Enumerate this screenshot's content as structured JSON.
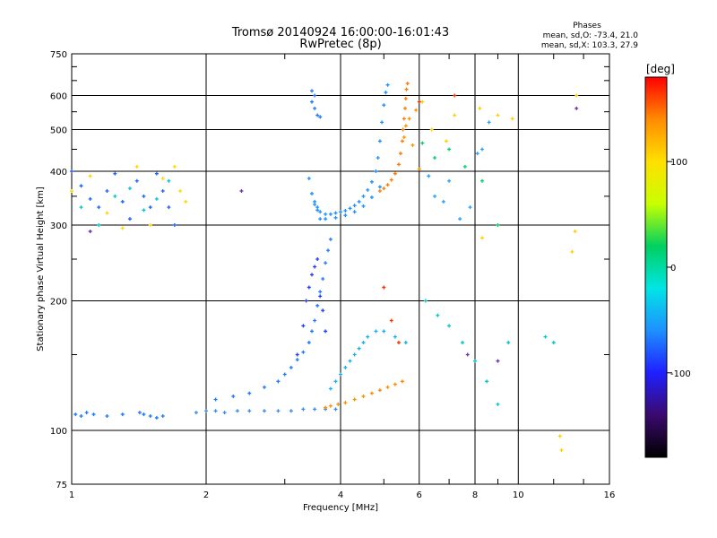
{
  "chart_data": {
    "type": "scatter",
    "title": "Tromsø 20140924 16:00:00-16:01:43",
    "subtitle": "RwPretec (8p)",
    "xlabel": "Frequency [MHz]",
    "ylabel": "Stationary phase Virtual Height [km]",
    "x_scale": "log",
    "y_scale": "log",
    "xlim": [
      1,
      16
    ],
    "ylim": [
      75,
      750
    ],
    "x_ticks": [
      1,
      2,
      4,
      6,
      8,
      10,
      16
    ],
    "x_minor_ticks": [
      3,
      5,
      7,
      9,
      12,
      14
    ],
    "y_ticks": [
      75,
      100,
      200,
      300,
      400,
      500,
      600,
      750
    ],
    "y_minor_ticks": [
      150,
      250,
      350,
      450,
      550,
      650,
      700
    ],
    "grid": true,
    "phase_box": {
      "title": "Phases",
      "line_o": "mean, sd,O: -73.4, 21.0",
      "line_x": "mean, sd,X: 103.3, 27.9"
    },
    "colorbar": {
      "label": "[deg]",
      "range": [
        -180,
        180
      ],
      "ticks": [
        100,
        0,
        -100
      ],
      "colormap": [
        "#000000",
        "#3b0a6e",
        "#1f1fff",
        "#1e90ff",
        "#00e5e5",
        "#00d060",
        "#c8ff00",
        "#ffe000",
        "#ff8c00",
        "#ff0000"
      ]
    },
    "series": [
      {
        "color": "#1e78ff",
        "points": [
          [
            1.02,
            109
          ],
          [
            1.05,
            108
          ],
          [
            1.08,
            110
          ],
          [
            1.12,
            109
          ],
          [
            1.2,
            108
          ],
          [
            1.3,
            109
          ],
          [
            1.42,
            110
          ],
          [
            1.45,
            109
          ],
          [
            1.5,
            108
          ],
          [
            1.55,
            107
          ],
          [
            1.6,
            108
          ]
        ]
      },
      {
        "color": "#3a8ae6",
        "points": [
          [
            1.9,
            110
          ],
          [
            2.0,
            111
          ],
          [
            2.1,
            111
          ],
          [
            2.2,
            110
          ],
          [
            2.35,
            111
          ],
          [
            2.5,
            111
          ],
          [
            2.7,
            111
          ],
          [
            2.9,
            111
          ],
          [
            3.1,
            111
          ],
          [
            3.3,
            112
          ],
          [
            3.5,
            112
          ],
          [
            3.7,
            112
          ],
          [
            3.9,
            112
          ]
        ]
      },
      {
        "color": "#1e78ff",
        "points": [
          [
            2.1,
            118
          ],
          [
            2.3,
            120
          ],
          [
            2.5,
            122
          ],
          [
            2.7,
            126
          ],
          [
            2.9,
            130
          ],
          [
            3.0,
            135
          ],
          [
            3.1,
            140
          ],
          [
            3.2,
            146
          ],
          [
            3.3,
            152
          ],
          [
            3.4,
            160
          ],
          [
            3.45,
            170
          ],
          [
            3.5,
            180
          ],
          [
            3.55,
            195
          ],
          [
            3.6,
            210
          ],
          [
            3.65,
            225
          ],
          [
            3.7,
            245
          ],
          [
            3.75,
            262
          ],
          [
            3.8,
            278
          ]
        ]
      },
      {
        "color": "#1e3cff",
        "points": [
          [
            3.2,
            150
          ],
          [
            3.3,
            175
          ],
          [
            3.35,
            200
          ],
          [
            3.4,
            215
          ],
          [
            3.45,
            230
          ],
          [
            3.5,
            240
          ],
          [
            3.55,
            250
          ],
          [
            3.6,
            205
          ],
          [
            3.65,
            190
          ],
          [
            3.7,
            170
          ]
        ]
      },
      {
        "color": "#17b0f0",
        "points": [
          [
            3.8,
            125
          ],
          [
            3.9,
            130
          ],
          [
            4.0,
            135
          ],
          [
            4.1,
            140
          ],
          [
            4.2,
            145
          ],
          [
            4.3,
            150
          ],
          [
            4.4,
            155
          ],
          [
            4.5,
            160
          ],
          [
            4.6,
            165
          ],
          [
            4.8,
            170
          ],
          [
            5.0,
            170
          ],
          [
            5.3,
            165
          ],
          [
            5.6,
            160
          ]
        ]
      },
      {
        "color": "#ff8c00",
        "points": [
          [
            3.7,
            113
          ],
          [
            3.8,
            114
          ],
          [
            3.95,
            115
          ],
          [
            4.1,
            116
          ],
          [
            4.3,
            118
          ],
          [
            4.5,
            120
          ],
          [
            4.7,
            122
          ],
          [
            4.9,
            124
          ],
          [
            5.1,
            126
          ],
          [
            5.3,
            128
          ],
          [
            5.5,
            130
          ]
        ]
      },
      {
        "color": "#1e90ff",
        "points": [
          [
            3.55,
            330
          ],
          [
            3.6,
            322
          ],
          [
            3.7,
            318
          ],
          [
            3.8,
            318
          ],
          [
            3.9,
            320
          ],
          [
            4.0,
            322
          ],
          [
            4.1,
            324
          ],
          [
            4.2,
            328
          ],
          [
            4.3,
            333
          ],
          [
            4.4,
            340
          ],
          [
            4.5,
            350
          ],
          [
            4.6,
            362
          ],
          [
            4.7,
            378
          ],
          [
            4.8,
            400
          ],
          [
            4.85,
            430
          ],
          [
            4.9,
            470
          ],
          [
            4.95,
            520
          ],
          [
            5.0,
            570
          ],
          [
            5.05,
            610
          ],
          [
            5.1,
            635
          ]
        ]
      },
      {
        "color": "#1e90ff",
        "points": [
          [
            3.4,
            385
          ],
          [
            3.45,
            355
          ],
          [
            3.5,
            335
          ],
          [
            3.55,
            325
          ],
          [
            3.5,
            340
          ],
          [
            3.6,
            310
          ],
          [
            3.7,
            310
          ],
          [
            3.9,
            312
          ],
          [
            4.1,
            316
          ],
          [
            4.3,
            322
          ],
          [
            4.5,
            332
          ],
          [
            4.7,
            348
          ],
          [
            4.9,
            368
          ]
        ]
      },
      {
        "color": "#ff7a00",
        "points": [
          [
            4.9,
            360
          ],
          [
            5.0,
            365
          ],
          [
            5.1,
            372
          ],
          [
            5.2,
            382
          ],
          [
            5.3,
            395
          ],
          [
            5.4,
            415
          ],
          [
            5.45,
            440
          ],
          [
            5.5,
            470
          ],
          [
            5.52,
            500
          ],
          [
            5.55,
            530
          ],
          [
            5.58,
            560
          ],
          [
            5.6,
            590
          ],
          [
            5.62,
            620
          ],
          [
            5.65,
            640
          ]
        ]
      },
      {
        "color": "#1e60ff",
        "points": [
          [
            1.0,
            400
          ],
          [
            1.05,
            370
          ],
          [
            1.1,
            345
          ],
          [
            1.15,
            330
          ],
          [
            1.2,
            360
          ],
          [
            1.25,
            395
          ],
          [
            1.3,
            340
          ],
          [
            1.35,
            310
          ],
          [
            1.4,
            380
          ],
          [
            1.45,
            350
          ],
          [
            1.5,
            330
          ],
          [
            1.55,
            395
          ],
          [
            1.6,
            360
          ],
          [
            1.65,
            330
          ],
          [
            1.7,
            300
          ]
        ]
      },
      {
        "color": "#ffd700",
        "points": [
          [
            1.0,
            360
          ],
          [
            1.1,
            390
          ],
          [
            1.2,
            320
          ],
          [
            1.3,
            295
          ],
          [
            1.4,
            410
          ],
          [
            1.5,
            300
          ],
          [
            1.6,
            385
          ],
          [
            1.7,
            410
          ],
          [
            1.75,
            360
          ],
          [
            1.8,
            340
          ]
        ]
      },
      {
        "color": "#00c8c8",
        "points": [
          [
            1.05,
            330
          ],
          [
            1.15,
            300
          ],
          [
            1.25,
            350
          ],
          [
            1.35,
            365
          ],
          [
            1.45,
            325
          ],
          [
            1.55,
            345
          ],
          [
            1.65,
            380
          ]
        ]
      },
      {
        "color": "#1e78ff",
        "points": [
          [
            3.45,
            615
          ],
          [
            3.5,
            600
          ],
          [
            3.45,
            580
          ],
          [
            3.5,
            560
          ],
          [
            3.55,
            540
          ],
          [
            3.6,
            535
          ]
        ]
      },
      {
        "color": "#ff9000",
        "points": [
          [
            5.55,
            480
          ],
          [
            5.6,
            510
          ],
          [
            5.7,
            530
          ],
          [
            5.8,
            460
          ],
          [
            5.9,
            555
          ],
          [
            6.0,
            405
          ]
        ]
      },
      {
        "color": "#28a0ff",
        "points": [
          [
            6.3,
            390
          ],
          [
            6.5,
            350
          ],
          [
            6.8,
            340
          ],
          [
            7.0,
            380
          ],
          [
            7.4,
            310
          ],
          [
            7.8,
            330
          ],
          [
            8.1,
            440
          ],
          [
            8.3,
            450
          ],
          [
            8.6,
            520
          ]
        ]
      },
      {
        "color": "#ffd000",
        "points": [
          [
            6.1,
            580
          ],
          [
            6.4,
            500
          ],
          [
            6.9,
            470
          ],
          [
            7.2,
            540
          ],
          [
            8.2,
            560
          ],
          [
            9.0,
            540
          ],
          [
            9.7,
            530
          ],
          [
            13.5,
            600
          ]
        ]
      },
      {
        "color": "#00c8c8",
        "points": [
          [
            6.2,
            200
          ],
          [
            6.6,
            185
          ],
          [
            7.0,
            175
          ],
          [
            7.5,
            160
          ],
          [
            8.0,
            145
          ],
          [
            8.5,
            130
          ],
          [
            9.0,
            115
          ],
          [
            9.5,
            160
          ],
          [
            11.5,
            165
          ],
          [
            12.0,
            160
          ]
        ]
      },
      {
        "color": "#00d060",
        "points": [
          [
            6.1,
            465
          ],
          [
            6.5,
            430
          ],
          [
            7.0,
            450
          ],
          [
            7.6,
            410
          ],
          [
            8.3,
            380
          ],
          [
            9.0,
            300
          ]
        ]
      },
      {
        "color": "#ff3000",
        "points": [
          [
            5.0,
            215
          ],
          [
            5.2,
            180
          ],
          [
            5.4,
            160
          ],
          [
            6.0,
            580
          ],
          [
            7.2,
            600
          ]
        ]
      },
      {
        "color": "#6a2fb0",
        "points": [
          [
            7.7,
            150
          ],
          [
            9.0,
            145
          ],
          [
            13.5,
            560
          ],
          [
            2.4,
            360
          ],
          [
            1.1,
            290
          ]
        ]
      },
      {
        "color": "#ffd000",
        "points": [
          [
            12.4,
            97
          ],
          [
            12.5,
            90
          ],
          [
            13.2,
            260
          ],
          [
            13.4,
            290
          ],
          [
            8.3,
            280
          ]
        ]
      }
    ]
  }
}
